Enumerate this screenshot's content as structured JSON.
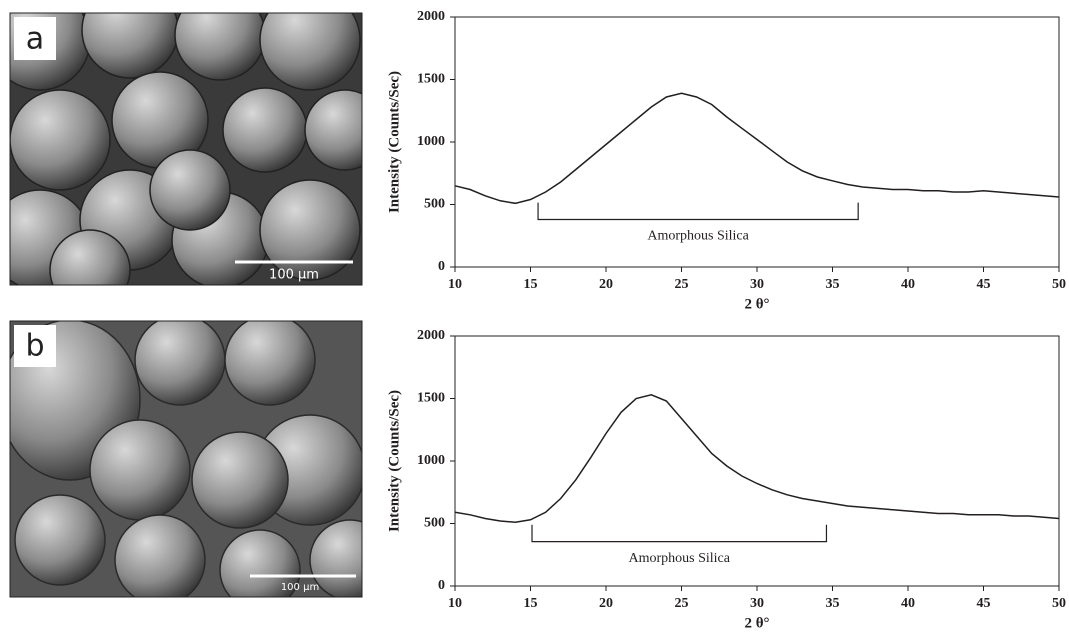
{
  "images": [
    {
      "label": "a",
      "scale_bar": "100 μm"
    },
    {
      "label": "b",
      "scale_bar": "100 μm"
    }
  ],
  "chart_data": [
    {
      "type": "line",
      "y_label": "Intensity (Counts/Sec)",
      "x_label": "2 θ°",
      "color": "#231f20",
      "x": [
        10,
        11,
        12,
        13,
        14,
        15,
        16,
        17,
        18,
        19,
        20,
        21,
        22,
        23,
        24,
        25,
        26,
        27,
        28,
        29,
        30,
        31,
        32,
        33,
        34,
        35,
        36,
        37,
        38,
        39,
        40,
        41,
        42,
        43,
        44,
        45,
        46,
        47,
        48,
        49,
        50
      ],
      "values": [
        650,
        620,
        570,
        530,
        510,
        540,
        600,
        680,
        780,
        880,
        980,
        1080,
        1180,
        1280,
        1360,
        1390,
        1360,
        1300,
        1200,
        1110,
        1020,
        930,
        840,
        770,
        720,
        690,
        660,
        640,
        630,
        620,
        620,
        610,
        610,
        600,
        600,
        610,
        600,
        590,
        580,
        570,
        560
      ],
      "xlim": [
        10,
        50
      ],
      "xticks": [
        10,
        15,
        20,
        25,
        30,
        35,
        40,
        45,
        50
      ],
      "ylim": [
        0,
        2000
      ],
      "yticks": [
        0,
        500,
        1000,
        1500,
        2000
      ],
      "annotation": {
        "text": "Amorphous Silica",
        "x": [
          15.5,
          36.7
        ],
        "y": [
          380,
          515
        ]
      }
    },
    {
      "type": "line",
      "y_label": "Intensity (Counts/Sec)",
      "x_label": "2 θ°",
      "color": "#231f20",
      "x": [
        10,
        11,
        12,
        13,
        14,
        15,
        16,
        17,
        18,
        19,
        20,
        21,
        22,
        23,
        24,
        25,
        26,
        27,
        28,
        29,
        30,
        31,
        32,
        33,
        34,
        35,
        36,
        37,
        38,
        39,
        40,
        41,
        42,
        43,
        44,
        45,
        46,
        47,
        48,
        49,
        50
      ],
      "values": [
        590,
        570,
        540,
        520,
        510,
        530,
        590,
        700,
        850,
        1030,
        1220,
        1390,
        1500,
        1530,
        1480,
        1340,
        1200,
        1060,
        960,
        880,
        820,
        770,
        730,
        700,
        680,
        660,
        640,
        630,
        620,
        610,
        600,
        590,
        580,
        580,
        570,
        570,
        570,
        560,
        560,
        550,
        540
      ],
      "xlim": [
        10,
        50
      ],
      "xticks": [
        10,
        15,
        20,
        25,
        30,
        35,
        40,
        45,
        50
      ],
      "ylim": [
        0,
        2000
      ],
      "yticks": [
        0,
        500,
        1000,
        1500,
        2000
      ],
      "annotation": {
        "text": "Amorphous Silica",
        "x": [
          15.1,
          34.6
        ],
        "y": [
          355,
          490
        ]
      }
    }
  ]
}
